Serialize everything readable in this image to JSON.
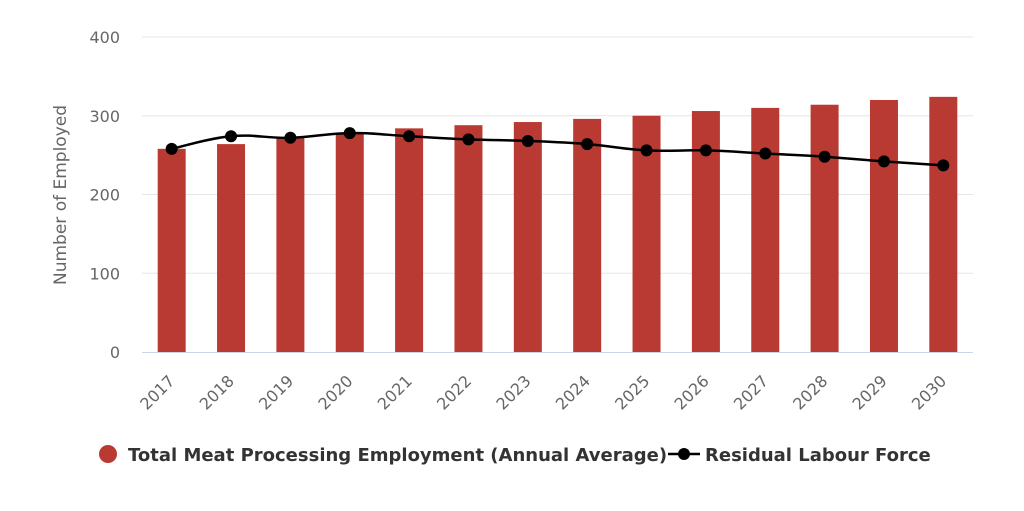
{
  "chart_data": {
    "type": "bar",
    "categories": [
      "2017",
      "2018",
      "2019",
      "2020",
      "2021",
      "2022",
      "2023",
      "2024",
      "2025",
      "2026",
      "2027",
      "2028",
      "2029",
      "2030"
    ],
    "series": [
      {
        "name": "Total Meat Processing Employment (Annual Average)",
        "type": "bar",
        "color": "#b93a32",
        "values": [
          258,
          264,
          272,
          278,
          284,
          288,
          292,
          296,
          300,
          306,
          310,
          314,
          320,
          324
        ]
      },
      {
        "name": "Residual Labour Force",
        "type": "line",
        "color": "#000000",
        "values": [
          258,
          274,
          272,
          278,
          274,
          270,
          268,
          264,
          256,
          256,
          252,
          248,
          242,
          237
        ]
      }
    ],
    "ylabel": "Number of Employed",
    "ylim": [
      0,
      400
    ],
    "yticks": [
      0,
      100,
      200,
      300,
      400
    ],
    "grid": true,
    "legend_position": "bottom"
  }
}
